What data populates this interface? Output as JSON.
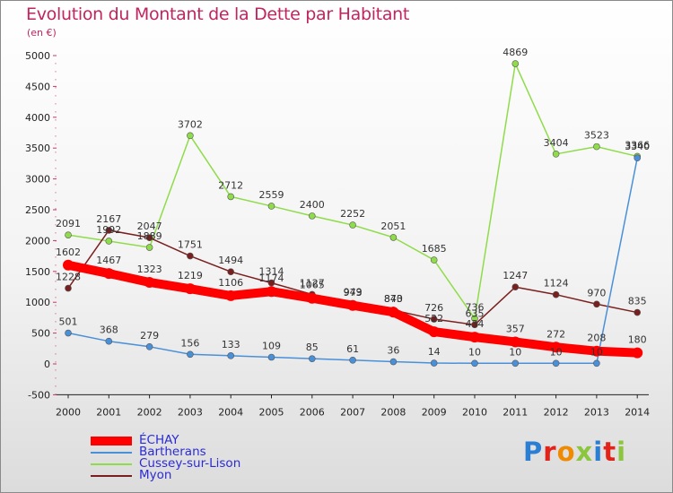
{
  "chart_data": {
    "type": "line",
    "title": "Evolution du Montant de la Dette par Habitant",
    "subtitle": "(en €)",
    "xlabel": "",
    "ylabel": "",
    "ylim": [
      -500,
      5000
    ],
    "y_ticks": [
      "-500",
      "0",
      "500",
      "1000",
      "1500",
      "2000",
      "2500",
      "3000",
      "3500",
      "4000",
      "4500",
      "5000"
    ],
    "categories": [
      "2000",
      "2001",
      "2002",
      "2003",
      "2004",
      "2005",
      "2006",
      "2007",
      "2008",
      "2009",
      "2010",
      "2011",
      "2012",
      "2013",
      "2014"
    ],
    "grid": false,
    "legend_position": "bottom-left",
    "series": [
      {
        "name": "ÉCHAY",
        "color": "#ff0000",
        "values": [
          1602,
          1467,
          1323,
          1219,
          1106,
          1174,
          1065,
          949,
          840,
          522,
          434,
          357,
          272,
          208,
          180
        ]
      },
      {
        "name": "Bartherans",
        "color": "#4a90d9",
        "values": [
          501,
          368,
          279,
          156,
          133,
          109,
          85,
          61,
          36,
          14,
          10,
          10,
          10,
          10,
          3340
        ]
      },
      {
        "name": "Cussey-sur-Lison",
        "color": "#8fdc4a",
        "values": [
          2091,
          1992,
          1889,
          3702,
          2712,
          2559,
          2400,
          2252,
          2051,
          1685,
          736,
          4869,
          3404,
          3523,
          3366
        ]
      },
      {
        "name": "Myon",
        "color": "#7a1f1f",
        "values": [
          1228,
          2167,
          2047,
          1751,
          1494,
          1314,
          1127,
          973,
          873,
          726,
          635,
          1247,
          1124,
          970,
          835
        ]
      }
    ]
  },
  "logo": {
    "letters": [
      "P",
      "r",
      "o",
      "x",
      "i",
      "t",
      "i"
    ]
  }
}
